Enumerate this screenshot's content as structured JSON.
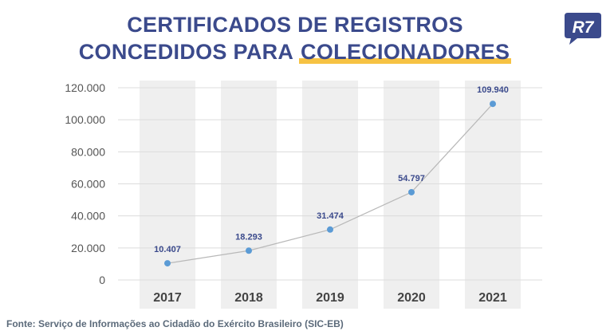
{
  "title": {
    "line1": "CERTIFICADOS DE REGISTROS",
    "line2_prefix": "CONCEDIDOS PARA ",
    "line2_highlight": "COLECIONADORES"
  },
  "logo_text": "R7",
  "source": "Fonte: Serviço de Informações ao Cidadão do Exército Brasileiro (SIC-EB)",
  "colors": {
    "title": "#3b4a8c",
    "highlight": "#f6c243",
    "point": "#5b9bd5",
    "line": "#b8b8b8",
    "label": "#3b4a8c",
    "column_band": "#efefef",
    "logo": "#3b4a8c"
  },
  "chart_data": {
    "type": "line",
    "categories": [
      "2017",
      "2018",
      "2019",
      "2020",
      "2021"
    ],
    "values": [
      10407,
      18293,
      31474,
      54797,
      109940
    ],
    "value_labels": [
      "10.407",
      "18.293",
      "31.474",
      "54.797",
      "109.940"
    ],
    "ylim": [
      0,
      120000
    ],
    "yticks": [
      0,
      20000,
      40000,
      60000,
      80000,
      100000,
      120000
    ],
    "ytick_labels": [
      "0",
      "20.000",
      "40.000",
      "60.000",
      "80.000",
      "100.000",
      "120.000"
    ],
    "grid": true,
    "xlabel": "",
    "ylabel": ""
  }
}
